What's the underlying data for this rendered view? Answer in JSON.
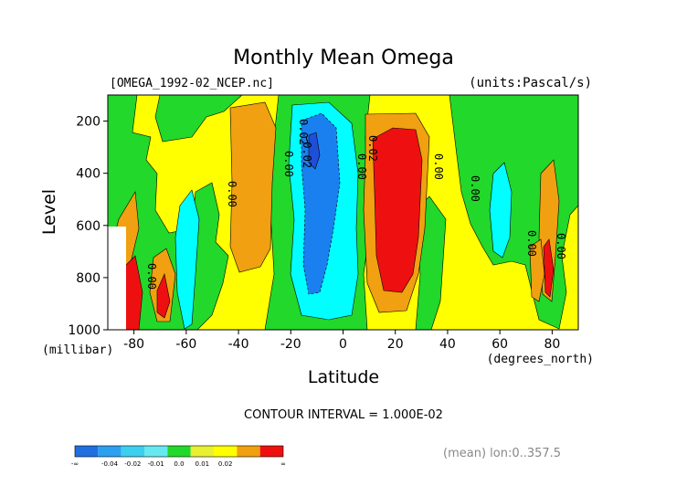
{
  "chart_data": {
    "type": "heatmap",
    "title": "Monthly Mean Omega",
    "file_label": "[OMEGA_1992-02_NCEP.nc]",
    "units_label": "(units:Pascal/s)",
    "xlabel": "Latitude",
    "x_units": "(degrees_north)",
    "ylabel": "Level",
    "y_units": "(millibar)",
    "x_ticks": [
      "-80",
      "-60",
      "-40",
      "-20",
      "0",
      "20",
      "40",
      "60",
      "80"
    ],
    "y_ticks": [
      "200",
      "400",
      "600",
      "800",
      "1000"
    ],
    "xlim": [
      -90,
      90
    ],
    "ylim": [
      1000,
      100
    ],
    "contour_interval": "CONTOUR INTERVAL = 1.000E-02",
    "mean_note": "(mean) lon:0..357.5",
    "contour_labels": [
      "0.00",
      "0.02",
      "0.00",
      "-0.02",
      "0.00",
      "0.02",
      "0.00",
      "0.00",
      "0.00",
      "0.00",
      "0.00"
    ],
    "colorbar": {
      "colors": [
        "#1f6fe0",
        "#2b9ff0",
        "#3ccfef",
        "#66e8f0",
        "#22d82a",
        "#e8f032",
        "#ffff00",
        "#f0a010",
        "#ee1010"
      ],
      "tick_labels": [
        "-∞",
        "-0.04",
        "-0.02",
        "-0.01",
        "0.0",
        "0.01",
        "0.02",
        "∞"
      ]
    },
    "grid": false
  }
}
